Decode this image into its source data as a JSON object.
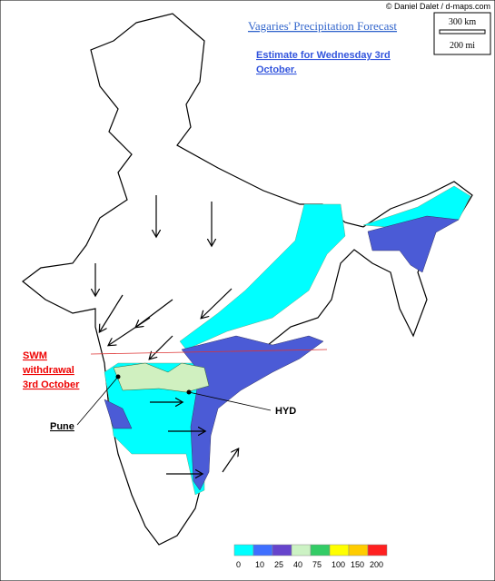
{
  "credit": "© Daniel Dalet / d-maps.com",
  "title": "Vagaries' Precipitation Forecast",
  "subtitle": [
    "Estimate for Wednesday 3rd",
    "October."
  ],
  "scale": {
    "km": "300 km",
    "mi": "200 mi"
  },
  "annotations": {
    "swm": [
      "SWM",
      "withdrawal",
      "3rd October"
    ],
    "pune": "Pune",
    "hyd": "HYD"
  },
  "legend": {
    "colors": [
      "#00ffff",
      "#3f6fff",
      "#6644cc",
      "#ccf2c4",
      "#33cc66",
      "#ffff00",
      "#ffcc00",
      "#ff2020"
    ],
    "labels": [
      0,
      10,
      25,
      40,
      75,
      100,
      150,
      200
    ]
  }
}
